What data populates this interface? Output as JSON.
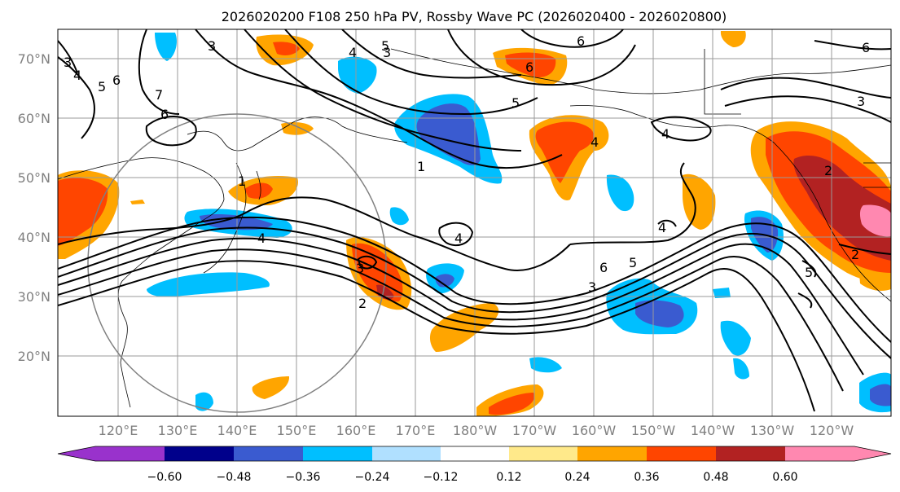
{
  "title": "2026020200 F108 250 hPa PV, Rossby Wave PC (2026020400 - 2026020800)",
  "lat_labels": [
    "70°N",
    "60°N",
    "50°N",
    "40°N",
    "30°N",
    "20°N"
  ],
  "lon_labels": [
    "120°E",
    "130°E",
    "140°E",
    "150°E",
    "160°E",
    "170°E",
    "180°W",
    "170°W",
    "160°W",
    "150°W",
    "140°W",
    "130°W",
    "120°W"
  ],
  "colorbar": {
    "ticks": [
      "−0.60",
      "−0.48",
      "−0.36",
      "−0.24",
      "−0.12",
      "0.12",
      "0.24",
      "0.36",
      "0.48",
      "0.60"
    ],
    "colors": [
      "#9932CC",
      "#00008B",
      "#3A5BD0",
      "#00BFFF",
      "#B0E0FF",
      "#FFFFFF",
      "#FFE98A",
      "#FFA500",
      "#FF4500",
      "#B22222",
      "#FF88B0"
    ]
  },
  "contour_labels": [
    "3",
    "4",
    "5",
    "6",
    "7",
    "6",
    "3",
    "4",
    "5",
    "6",
    "6",
    "1",
    "4",
    "3",
    "3",
    "1",
    "2",
    "4",
    "5",
    "4",
    "4",
    "6",
    "3",
    "5",
    "4",
    "2",
    "6",
    "5",
    "2",
    "3"
  ]
}
